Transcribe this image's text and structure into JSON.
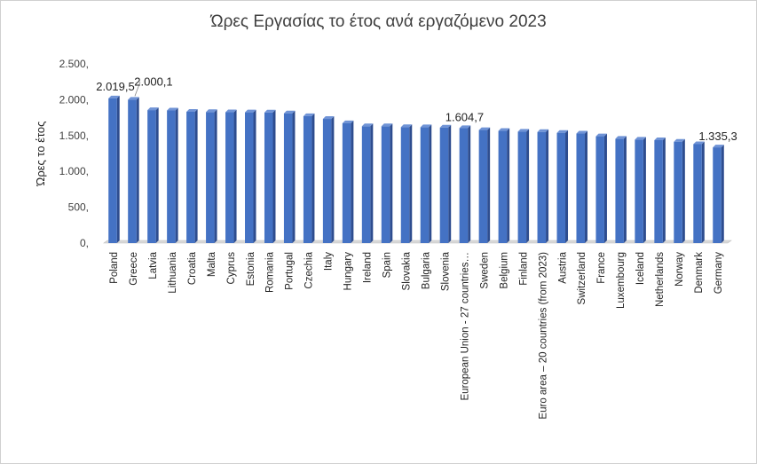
{
  "chart_data": {
    "type": "bar",
    "title": "Ώρες Εργασίας το έτος ανά εργαζόμενο 2023",
    "ylabel": "Ώρες το έτος",
    "xlabel": "",
    "ylim": [
      0,
      2500
    ],
    "yticks": [
      {
        "value": 0,
        "label": "0,"
      },
      {
        "value": 500,
        "label": "500,"
      },
      {
        "value": 1000,
        "label": "1.000,"
      },
      {
        "value": 1500,
        "label": "1.500,"
      },
      {
        "value": 2000,
        "label": "2.000,"
      },
      {
        "value": 2500,
        "label": "2.500,"
      }
    ],
    "grid": false,
    "bar_color": "#4472c4",
    "bar_side_color": "#2e4d8f",
    "categories": [
      "Poland",
      "Greece",
      "Latvia",
      "Lithuania",
      "Croatia",
      "Malta",
      "Cyprus",
      "Estonia",
      "Romania",
      "Portugal",
      "Czechia",
      "Italy",
      "Hungary",
      "Ireland",
      "Spain",
      "Slovakia",
      "Bulgaria",
      "Slovenia",
      "European Union - 27 countries…",
      "Sweden",
      "Belgium",
      "Finland",
      "Euro area – 20 countries (from 2023)",
      "Austria",
      "Switzerland",
      "France",
      "Luxembourg",
      "Iceland",
      "Netherlands",
      "Norway",
      "Denmark",
      "Germany"
    ],
    "values": [
      2019.5,
      2000.1,
      1855,
      1850,
      1832,
      1828,
      1825,
      1824,
      1822,
      1810,
      1771,
      1732,
      1673,
      1630,
      1630,
      1618,
      1616,
      1612,
      1604.7,
      1577,
      1565,
      1555,
      1550,
      1538,
      1528,
      1490,
      1455,
      1443,
      1436,
      1414,
      1380,
      1335.3
    ],
    "data_labels": [
      {
        "index": 0,
        "text": "2.019,5"
      },
      {
        "index": 1,
        "text": "2.000,1"
      },
      {
        "index": 18,
        "text": "1.604,7"
      },
      {
        "index": 31,
        "text": "1.335,3"
      }
    ]
  }
}
